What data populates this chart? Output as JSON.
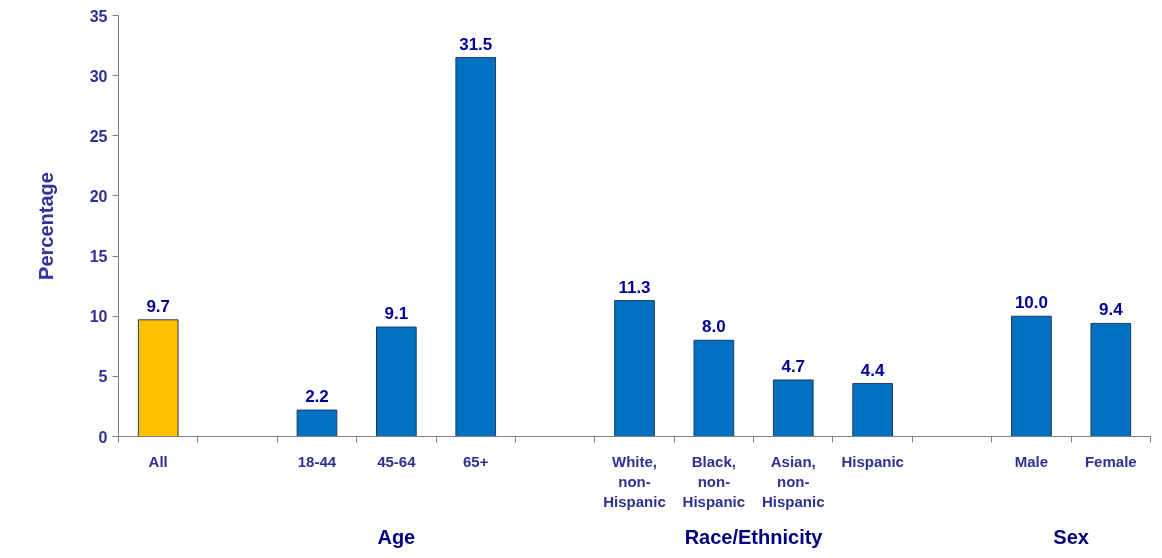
{
  "chart_data": {
    "type": "bar",
    "ylabel": "Percentage",
    "categories": [
      "All",
      null,
      "18-44",
      "45-64",
      "65+",
      null,
      "White, non-Hispanic",
      "Black, non-Hispanic",
      "Asian, non-Hispanic",
      "Hispanic",
      null,
      "Male",
      "Female"
    ],
    "values": [
      9.7,
      null,
      2.2,
      9.1,
      31.5,
      null,
      11.3,
      8.0,
      4.7,
      4.4,
      null,
      10.0,
      9.4
    ],
    "value_labels": [
      "9.7",
      null,
      "2.2",
      "9.1",
      "31.5",
      null,
      "11.3",
      "8.0",
      "4.7",
      "4.4",
      null,
      "10.0",
      "9.4"
    ],
    "colors": [
      "#ffc000",
      null,
      "#0070c0",
      "#0070c0",
      "#0070c0",
      null,
      "#0070c0",
      "#0070c0",
      "#0070c0",
      "#0070c0",
      null,
      "#0070c0",
      "#0070c0"
    ],
    "ylim": [
      0,
      35
    ],
    "yticks": [
      0,
      5,
      10,
      15,
      20,
      25,
      30,
      35
    ],
    "annotations": [
      "Age",
      "Race/Ethnicity",
      "Sex"
    ],
    "grid": false
  }
}
